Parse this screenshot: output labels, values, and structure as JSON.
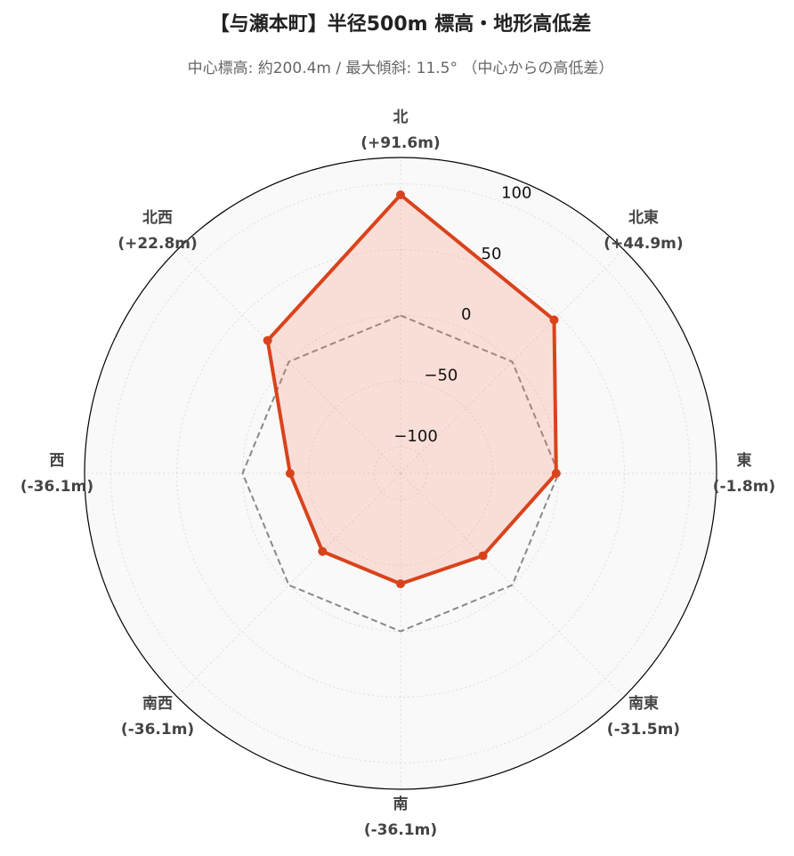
{
  "chart_data": {
    "type": "radar",
    "title": "【与瀬本町】半径500m 標高・地形高低差",
    "subtitle": "中心標高: 約200.4m / 最大傾斜: 11.5° （中心からの高低差）",
    "categories": [
      "北",
      "北東",
      "東",
      "南東",
      "南",
      "南西",
      "西",
      "北西"
    ],
    "values": [
      91.6,
      44.9,
      -1.8,
      -31.5,
      -36.1,
      -36.1,
      -36.1,
      22.8
    ],
    "value_labels": [
      "(+91.6m)",
      "(+44.9m)",
      "(-1.8m)",
      "(-31.5m)",
      "(-36.1m)",
      "(-36.1m)",
      "(-36.1m)",
      "(+22.8m)"
    ],
    "color": "#d9431c",
    "fill_color": "rgba(250,128,100,0.22)",
    "reference_line": {
      "value": 0,
      "color": "#888888"
    },
    "ylim": [
      -120,
      120
    ],
    "yticks": [
      {
        "value": -100,
        "label": "−100"
      },
      {
        "value": -50,
        "label": "−50"
      },
      0,
      50,
      100
    ],
    "grid": true
  }
}
